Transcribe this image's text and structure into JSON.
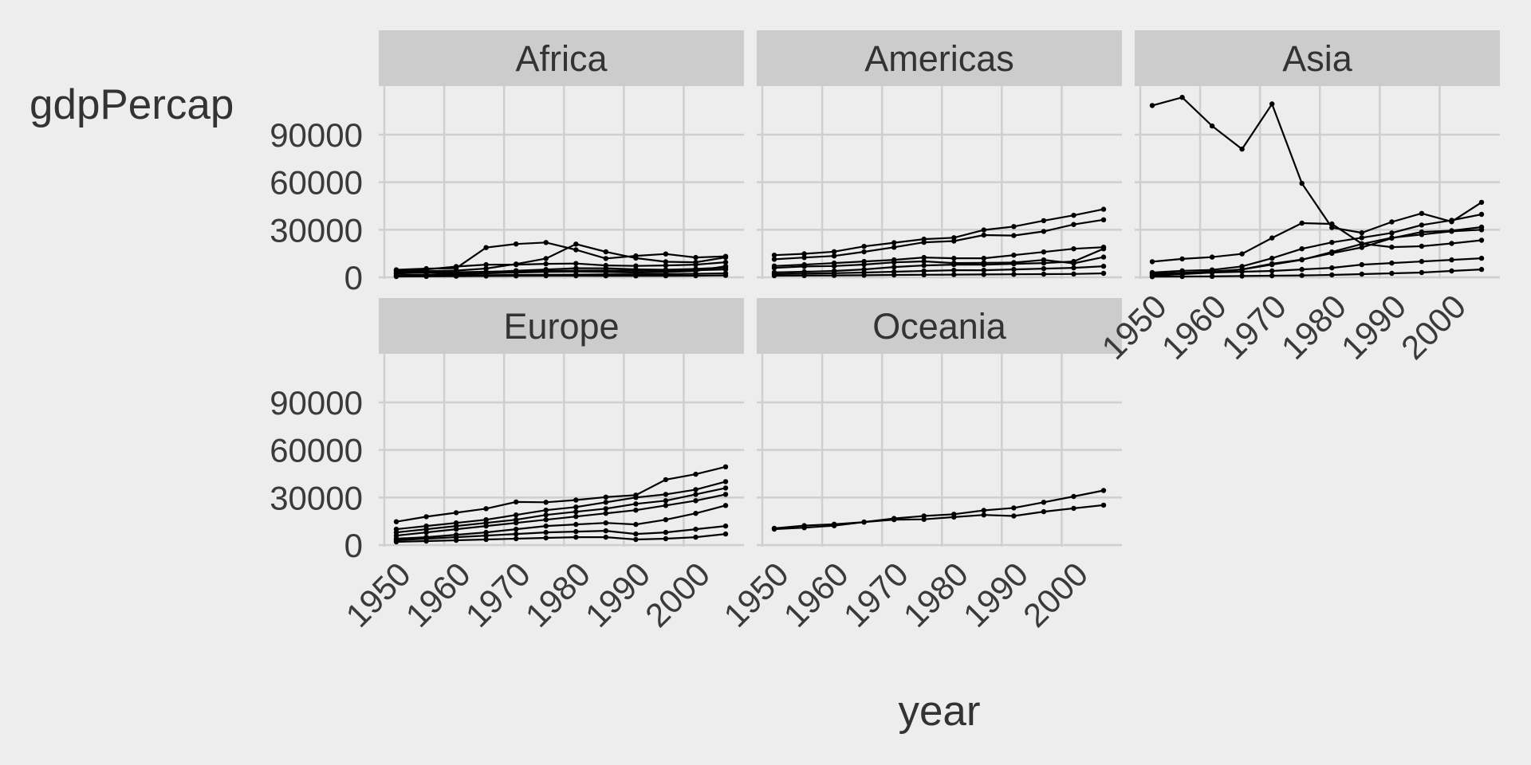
{
  "chart_data": {
    "type": "line",
    "xlabel": "year",
    "ylabel": "gdpPercap",
    "x_ticks": [
      1950,
      1960,
      1970,
      1980,
      1990,
      2000
    ],
    "y_ticks": [
      0,
      30000,
      60000,
      90000
    ],
    "xlim": [
      1950,
      2007
    ],
    "ylim": [
      0,
      120000
    ],
    "grid": true,
    "x": [
      1952,
      1957,
      1962,
      1967,
      1972,
      1977,
      1982,
      1987,
      1992,
      1997,
      2002,
      2007
    ],
    "facets": [
      {
        "name": "Africa",
        "series": [
          {
            "values": [
              4725,
              5487,
              5768,
              18772,
              21011,
              21951,
              17364,
              11864,
              13522,
              14723,
              12522,
              13206
            ]
          },
          {
            "values": [
              3522,
              3828,
              4269,
              5523,
              8407,
              11806,
              20956,
              16114,
              12100,
              9800,
              9500,
              12570
            ]
          },
          {
            "values": [
              2449,
              3014,
              2551,
              3247,
              4182,
              4910,
              5745,
              5681,
              5023,
              4797,
              5288,
              6223
            ]
          },
          {
            "values": [
              4293,
              5000,
              6800,
              8000,
              8000,
              8500,
              8700,
              7500,
              7200,
              7500,
              8000,
              9500
            ]
          },
          {
            "values": [
              1400,
              1600,
              2000,
              2500,
              3000,
              3400,
              3600,
              3400,
              3000,
              3300,
              4000,
              7000
            ]
          },
          {
            "values": [
              2669,
              3000,
              3200,
              3500,
              3800,
              4000,
              4200,
              4300,
              4100,
              4200,
              4500,
              5000
            ]
          },
          {
            "values": [
              1000,
              1100,
              1200,
              1300,
              1500,
              1600,
              1700,
              1800,
              1900,
              2000,
              2200,
              2500
            ]
          },
          {
            "values": [
              500,
              600,
              700,
              800,
              900,
              1000,
              1000,
              950,
              900,
              950,
              1000,
              1200
            ]
          }
        ]
      },
      {
        "name": "Americas",
        "series": [
          {
            "values": [
              13990,
              14847,
              16173,
              19530,
              21806,
              24072,
              25009,
              29884,
              32004,
              35767,
              39097,
              42952
            ]
          },
          {
            "values": [
              11367,
              12490,
              13462,
              16077,
              18971,
              22091,
              22899,
              26627,
              26343,
              28955,
              33329,
              36319
            ]
          },
          {
            "values": [
              7144,
              8000,
              9000,
              10000,
              11000,
              12500,
              12000,
              12000,
              14000,
              16000,
              18000,
              19000
            ]
          },
          {
            "values": [
              5911,
              6857,
              7133,
              8053,
              9443,
              10079,
              8998,
              9140,
              9308,
              10967,
              8798,
              12779
            ]
          },
          {
            "values": [
              3048,
              3500,
              4000,
              5000,
              6500,
              7500,
              8000,
              8000,
              8500,
              9000,
              10000,
              18000
            ]
          },
          {
            "values": [
              2000,
              2300,
              2600,
              3000,
              3500,
              4000,
              4500,
              4500,
              5000,
              5500,
              6000,
              7000
            ]
          },
          {
            "values": [
              1000,
              1100,
              1200,
              1300,
              1500,
              1600,
              1700,
              1800,
              1900,
              2000,
              2100,
              2500
            ]
          }
        ]
      },
      {
        "name": "Asia",
        "series": [
          {
            "values": [
              108382,
              113523,
              95458,
              80895,
              109348,
              59265,
              31354,
              28118,
              34933,
              40301,
              35110,
              47307
            ]
          },
          {
            "values": [
              9867,
              11636,
              12754,
              14805,
              24837,
              34168,
              33693,
              21199,
              19035,
              19614,
              21350,
              23391
            ]
          },
          {
            "values": [
              3035,
              4129,
              4683,
              6897,
              12000,
              18000,
              22000,
              25000,
              28000,
              33000,
              36000,
              39725
            ]
          },
          {
            "values": [
              2315,
              2843,
              3674,
              4977,
              8597,
              11210,
              15169,
              18871,
              24703,
              28604,
              29432,
              31656
            ]
          },
          {
            "values": [
              1000,
              2000,
              3000,
              5000,
              8000,
              11000,
              16000,
              21000,
              25000,
              27000,
              29000,
              30000
            ]
          },
          {
            "values": [
              2000,
              2500,
              3000,
              3500,
              4000,
              5000,
              6000,
              8000,
              9000,
              10000,
              11000,
              12000
            ]
          },
          {
            "values": [
              400,
              500,
              600,
              800,
              1000,
              1200,
              1500,
              2000,
              2500,
              3000,
              4000,
              5000
            ]
          }
        ]
      },
      {
        "name": "Europe",
        "series": [
          {
            "values": [
              14734,
              17909,
              20431,
              22966,
              27195,
              26982,
              28397,
              30282,
              31541,
              41283,
              44684,
              49357
            ]
          },
          {
            "values": [
              10000,
              12000,
              14000,
              16000,
              19000,
              22000,
              24000,
              27000,
              30000,
              32000,
              35000,
              40000
            ]
          },
          {
            "values": [
              8000,
              10000,
              12000,
              14000,
              16000,
              19000,
              21000,
              23000,
              26000,
              28000,
              32000,
              36000
            ]
          },
          {
            "values": [
              6000,
              8000,
              10000,
              12000,
              14000,
              16000,
              18000,
              20000,
              22000,
              25000,
              28000,
              32000
            ]
          },
          {
            "values": [
              4000,
              5000,
              6500,
              8000,
              10000,
              12000,
              13000,
              14000,
              13000,
              16000,
              20000,
              25000
            ]
          },
          {
            "values": [
              3000,
              4000,
              5000,
              6000,
              7000,
              8000,
              8500,
              9000,
              7000,
              8000,
              10000,
              12000
            ]
          },
          {
            "values": [
              2000,
              2500,
              3000,
              3500,
              4000,
              4500,
              5000,
              5000,
              3500,
              4000,
              5000,
              7000
            ]
          }
        ]
      },
      {
        "name": "Oceania",
        "series": [
          {
            "values": [
              10040,
              10950,
              12217,
              14526,
              16789,
              18334,
              19477,
              21889,
              23425,
              26998,
              30688,
              34435
            ]
          },
          {
            "values": [
              10557,
              12247,
              13176,
              14464,
              16046,
              16234,
              17632,
              19008,
              18363,
              21050,
              23189,
              25185
            ]
          }
        ]
      }
    ]
  }
}
